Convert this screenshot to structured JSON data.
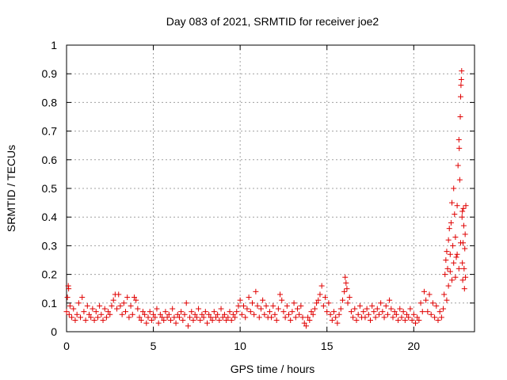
{
  "chart_data": {
    "type": "scatter",
    "title": "Day 083 of 2021, SRMTID for receiver joe2",
    "xlabel": "GPS time / hours",
    "ylabel": "SRMTID / TECUs",
    "xlim": [
      0,
      23.5
    ],
    "ylim": [
      0,
      1
    ],
    "grid": true,
    "marker": "+",
    "color": "#e00000",
    "x_ticks": [
      {
        "value": 0,
        "label": "0"
      },
      {
        "value": 5,
        "label": "5"
      },
      {
        "value": 10,
        "label": "10"
      },
      {
        "value": 15,
        "label": "15"
      },
      {
        "value": 20,
        "label": "20"
      }
    ],
    "y_ticks": [
      {
        "value": 0,
        "label": "0"
      },
      {
        "value": 0.1,
        "label": "0.1"
      },
      {
        "value": 0.2,
        "label": "0.2"
      },
      {
        "value": 0.3,
        "label": "0.3"
      },
      {
        "value": 0.4,
        "label": "0.4"
      },
      {
        "value": 0.5,
        "label": "0.5"
      },
      {
        "value": 0.6,
        "label": "0.6"
      },
      {
        "value": 0.7,
        "label": "0.7"
      },
      {
        "value": 0.8,
        "label": "0.8"
      },
      {
        "value": 0.9,
        "label": "0.9"
      },
      {
        "value": 1,
        "label": "1"
      }
    ],
    "points": [
      [
        0.0,
        0.07
      ],
      [
        0.05,
        0.12
      ],
      [
        0.1,
        0.16
      ],
      [
        0.12,
        0.15
      ],
      [
        0.15,
        0.06
      ],
      [
        0.2,
        0.09
      ],
      [
        0.3,
        0.05
      ],
      [
        0.4,
        0.08
      ],
      [
        0.5,
        0.04
      ],
      [
        0.6,
        0.06
      ],
      [
        0.7,
        0.1
      ],
      [
        0.8,
        0.05
      ],
      [
        0.9,
        0.12
      ],
      [
        1.0,
        0.07
      ],
      [
        1.1,
        0.04
      ],
      [
        1.2,
        0.09
      ],
      [
        1.3,
        0.06
      ],
      [
        1.4,
        0.05
      ],
      [
        1.5,
        0.08
      ],
      [
        1.6,
        0.04
      ],
      [
        1.7,
        0.07
      ],
      [
        1.8,
        0.05
      ],
      [
        1.9,
        0.09
      ],
      [
        2.0,
        0.06
      ],
      [
        2.1,
        0.04
      ],
      [
        2.2,
        0.08
      ],
      [
        2.3,
        0.05
      ],
      [
        2.4,
        0.07
      ],
      [
        2.5,
        0.06
      ],
      [
        2.6,
        0.09
      ],
      [
        2.7,
        0.11
      ],
      [
        2.8,
        0.13
      ],
      [
        2.9,
        0.08
      ],
      [
        3.0,
        0.13
      ],
      [
        3.1,
        0.09
      ],
      [
        3.2,
        0.06
      ],
      [
        3.3,
        0.1
      ],
      [
        3.4,
        0.07
      ],
      [
        3.5,
        0.12
      ],
      [
        3.6,
        0.05
      ],
      [
        3.7,
        0.09
      ],
      [
        3.8,
        0.06
      ],
      [
        3.9,
        0.12
      ],
      [
        4.0,
        0.11
      ],
      [
        4.1,
        0.08
      ],
      [
        4.2,
        0.05
      ],
      [
        4.3,
        0.04
      ],
      [
        4.4,
        0.07
      ],
      [
        4.5,
        0.06
      ],
      [
        4.6,
        0.03
      ],
      [
        4.7,
        0.05
      ],
      [
        4.8,
        0.07
      ],
      [
        4.9,
        0.04
      ],
      [
        5.0,
        0.06
      ],
      [
        5.1,
        0.05
      ],
      [
        5.2,
        0.08
      ],
      [
        5.3,
        0.03
      ],
      [
        5.4,
        0.06
      ],
      [
        5.5,
        0.05
      ],
      [
        5.6,
        0.04
      ],
      [
        5.7,
        0.07
      ],
      [
        5.8,
        0.05
      ],
      [
        5.9,
        0.06
      ],
      [
        6.0,
        0.04
      ],
      [
        6.1,
        0.08
      ],
      [
        6.2,
        0.05
      ],
      [
        6.3,
        0.03
      ],
      [
        6.4,
        0.06
      ],
      [
        6.5,
        0.05
      ],
      [
        6.6,
        0.07
      ],
      [
        6.7,
        0.04
      ],
      [
        6.8,
        0.06
      ],
      [
        6.9,
        0.1
      ],
      [
        7.0,
        0.02
      ],
      [
        7.1,
        0.05
      ],
      [
        7.2,
        0.07
      ],
      [
        7.3,
        0.04
      ],
      [
        7.4,
        0.06
      ],
      [
        7.5,
        0.05
      ],
      [
        7.6,
        0.08
      ],
      [
        7.7,
        0.04
      ],
      [
        7.8,
        0.06
      ],
      [
        7.9,
        0.05
      ],
      [
        8.0,
        0.07
      ],
      [
        8.1,
        0.03
      ],
      [
        8.2,
        0.06
      ],
      [
        8.3,
        0.05
      ],
      [
        8.4,
        0.04
      ],
      [
        8.5,
        0.07
      ],
      [
        8.6,
        0.05
      ],
      [
        8.7,
        0.06
      ],
      [
        8.8,
        0.04
      ],
      [
        8.9,
        0.08
      ],
      [
        9.0,
        0.05
      ],
      [
        9.1,
        0.06
      ],
      [
        9.2,
        0.04
      ],
      [
        9.3,
        0.05
      ],
      [
        9.4,
        0.07
      ],
      [
        9.5,
        0.04
      ],
      [
        9.6,
        0.06
      ],
      [
        9.7,
        0.05
      ],
      [
        9.8,
        0.07
      ],
      [
        9.9,
        0.09
      ],
      [
        10.0,
        0.11
      ],
      [
        10.1,
        0.06
      ],
      [
        10.2,
        0.09
      ],
      [
        10.3,
        0.05
      ],
      [
        10.4,
        0.08
      ],
      [
        10.5,
        0.12
      ],
      [
        10.6,
        0.07
      ],
      [
        10.7,
        0.1
      ],
      [
        10.8,
        0.06
      ],
      [
        10.9,
        0.14
      ],
      [
        11.0,
        0.09
      ],
      [
        11.1,
        0.05
      ],
      [
        11.2,
        0.08
      ],
      [
        11.3,
        0.11
      ],
      [
        11.4,
        0.06
      ],
      [
        11.5,
        0.09
      ],
      [
        11.6,
        0.05
      ],
      [
        11.7,
        0.07
      ],
      [
        11.8,
        0.05
      ],
      [
        11.9,
        0.09
      ],
      [
        12.0,
        0.06
      ],
      [
        12.1,
        0.04
      ],
      [
        12.2,
        0.08
      ],
      [
        12.3,
        0.13
      ],
      [
        12.4,
        0.11
      ],
      [
        12.5,
        0.07
      ],
      [
        12.6,
        0.05
      ],
      [
        12.7,
        0.09
      ],
      [
        12.8,
        0.06
      ],
      [
        12.9,
        0.04
      ],
      [
        13.0,
        0.07
      ],
      [
        13.1,
        0.1
      ],
      [
        13.2,
        0.05
      ],
      [
        13.3,
        0.08
      ],
      [
        13.4,
        0.06
      ],
      [
        13.5,
        0.09
      ],
      [
        13.6,
        0.05
      ],
      [
        13.7,
        0.03
      ],
      [
        13.8,
        0.02
      ],
      [
        13.9,
        0.05
      ],
      [
        14.0,
        0.04
      ],
      [
        14.1,
        0.07
      ],
      [
        14.2,
        0.06
      ],
      [
        14.3,
        0.08
      ],
      [
        14.4,
        0.1
      ],
      [
        14.5,
        0.11
      ],
      [
        14.6,
        0.13
      ],
      [
        14.7,
        0.16
      ],
      [
        14.8,
        0.09
      ],
      [
        14.9,
        0.12
      ],
      [
        15.0,
        0.07
      ],
      [
        15.1,
        0.1
      ],
      [
        15.2,
        0.06
      ],
      [
        15.3,
        0.04
      ],
      [
        15.4,
        0.07
      ],
      [
        15.5,
        0.05
      ],
      [
        15.6,
        0.03
      ],
      [
        15.7,
        0.06
      ],
      [
        15.8,
        0.08
      ],
      [
        15.9,
        0.11
      ],
      [
        16.0,
        0.14
      ],
      [
        16.05,
        0.19
      ],
      [
        16.1,
        0.17
      ],
      [
        16.15,
        0.15
      ],
      [
        16.2,
        0.1
      ],
      [
        16.3,
        0.12
      ],
      [
        16.4,
        0.07
      ],
      [
        16.5,
        0.05
      ],
      [
        16.6,
        0.08
      ],
      [
        16.7,
        0.04
      ],
      [
        16.8,
        0.06
      ],
      [
        16.9,
        0.09
      ],
      [
        17.0,
        0.05
      ],
      [
        17.1,
        0.07
      ],
      [
        17.2,
        0.05
      ],
      [
        17.3,
        0.08
      ],
      [
        17.4,
        0.06
      ],
      [
        17.5,
        0.04
      ],
      [
        17.6,
        0.09
      ],
      [
        17.7,
        0.07
      ],
      [
        17.8,
        0.05
      ],
      [
        17.9,
        0.08
      ],
      [
        18.0,
        0.06
      ],
      [
        18.1,
        0.1
      ],
      [
        18.2,
        0.07
      ],
      [
        18.3,
        0.05
      ],
      [
        18.4,
        0.09
      ],
      [
        18.5,
        0.06
      ],
      [
        18.6,
        0.11
      ],
      [
        18.7,
        0.08
      ],
      [
        18.8,
        0.05
      ],
      [
        18.9,
        0.07
      ],
      [
        19.0,
        0.06
      ],
      [
        19.1,
        0.04
      ],
      [
        19.2,
        0.08
      ],
      [
        19.3,
        0.05
      ],
      [
        19.4,
        0.07
      ],
      [
        19.5,
        0.04
      ],
      [
        19.6,
        0.06
      ],
      [
        19.7,
        0.05
      ],
      [
        19.8,
        0.08
      ],
      [
        19.9,
        0.04
      ],
      [
        20.0,
        0.06
      ],
      [
        20.1,
        0.03
      ],
      [
        20.2,
        0.05
      ],
      [
        20.3,
        0.04
      ],
      [
        20.4,
        0.1
      ],
      [
        20.5,
        0.07
      ],
      [
        20.6,
        0.14
      ],
      [
        20.7,
        0.11
      ],
      [
        20.8,
        0.07
      ],
      [
        20.9,
        0.13
      ],
      [
        21.0,
        0.06
      ],
      [
        21.1,
        0.1
      ],
      [
        21.2,
        0.05
      ],
      [
        21.3,
        0.09
      ],
      [
        21.4,
        0.04
      ],
      [
        21.5,
        0.07
      ],
      [
        21.6,
        0.05
      ],
      [
        21.7,
        0.08
      ],
      [
        21.75,
        0.13
      ],
      [
        21.8,
        0.2
      ],
      [
        21.85,
        0.25
      ],
      [
        21.9,
        0.28
      ],
      [
        21.95,
        0.22
      ],
      [
        22.0,
        0.32
      ],
      [
        22.05,
        0.36
      ],
      [
        22.1,
        0.27
      ],
      [
        22.15,
        0.38
      ],
      [
        22.2,
        0.45
      ],
      [
        22.25,
        0.3
      ],
      [
        22.3,
        0.5
      ],
      [
        22.35,
        0.41
      ],
      [
        22.4,
        0.33
      ],
      [
        22.45,
        0.26
      ],
      [
        22.5,
        0.44
      ],
      [
        22.55,
        0.58
      ],
      [
        22.6,
        0.67
      ],
      [
        22.62,
        0.64
      ],
      [
        22.65,
        0.53
      ],
      [
        22.68,
        0.75
      ],
      [
        22.7,
        0.82
      ],
      [
        22.72,
        0.86
      ],
      [
        22.74,
        0.88
      ],
      [
        22.76,
        0.91
      ],
      [
        22.78,
        0.4
      ],
      [
        22.8,
        0.24
      ],
      [
        22.82,
        0.18
      ],
      [
        22.84,
        0.31
      ],
      [
        22.86,
        0.43
      ],
      [
        22.88,
        0.37
      ],
      [
        22.9,
        0.22
      ],
      [
        22.92,
        0.15
      ],
      [
        22.94,
        0.29
      ],
      [
        22.96,
        0.34
      ],
      [
        22.98,
        0.19
      ],
      [
        23.0,
        0.44
      ],
      [
        21.9,
        0.11
      ],
      [
        22.0,
        0.16
      ],
      [
        22.1,
        0.21
      ],
      [
        22.2,
        0.18
      ],
      [
        22.3,
        0.24
      ],
      [
        22.4,
        0.19
      ],
      [
        22.5,
        0.27
      ],
      [
        22.6,
        0.22
      ],
      [
        22.7,
        0.31
      ],
      [
        22.8,
        0.42
      ]
    ]
  }
}
